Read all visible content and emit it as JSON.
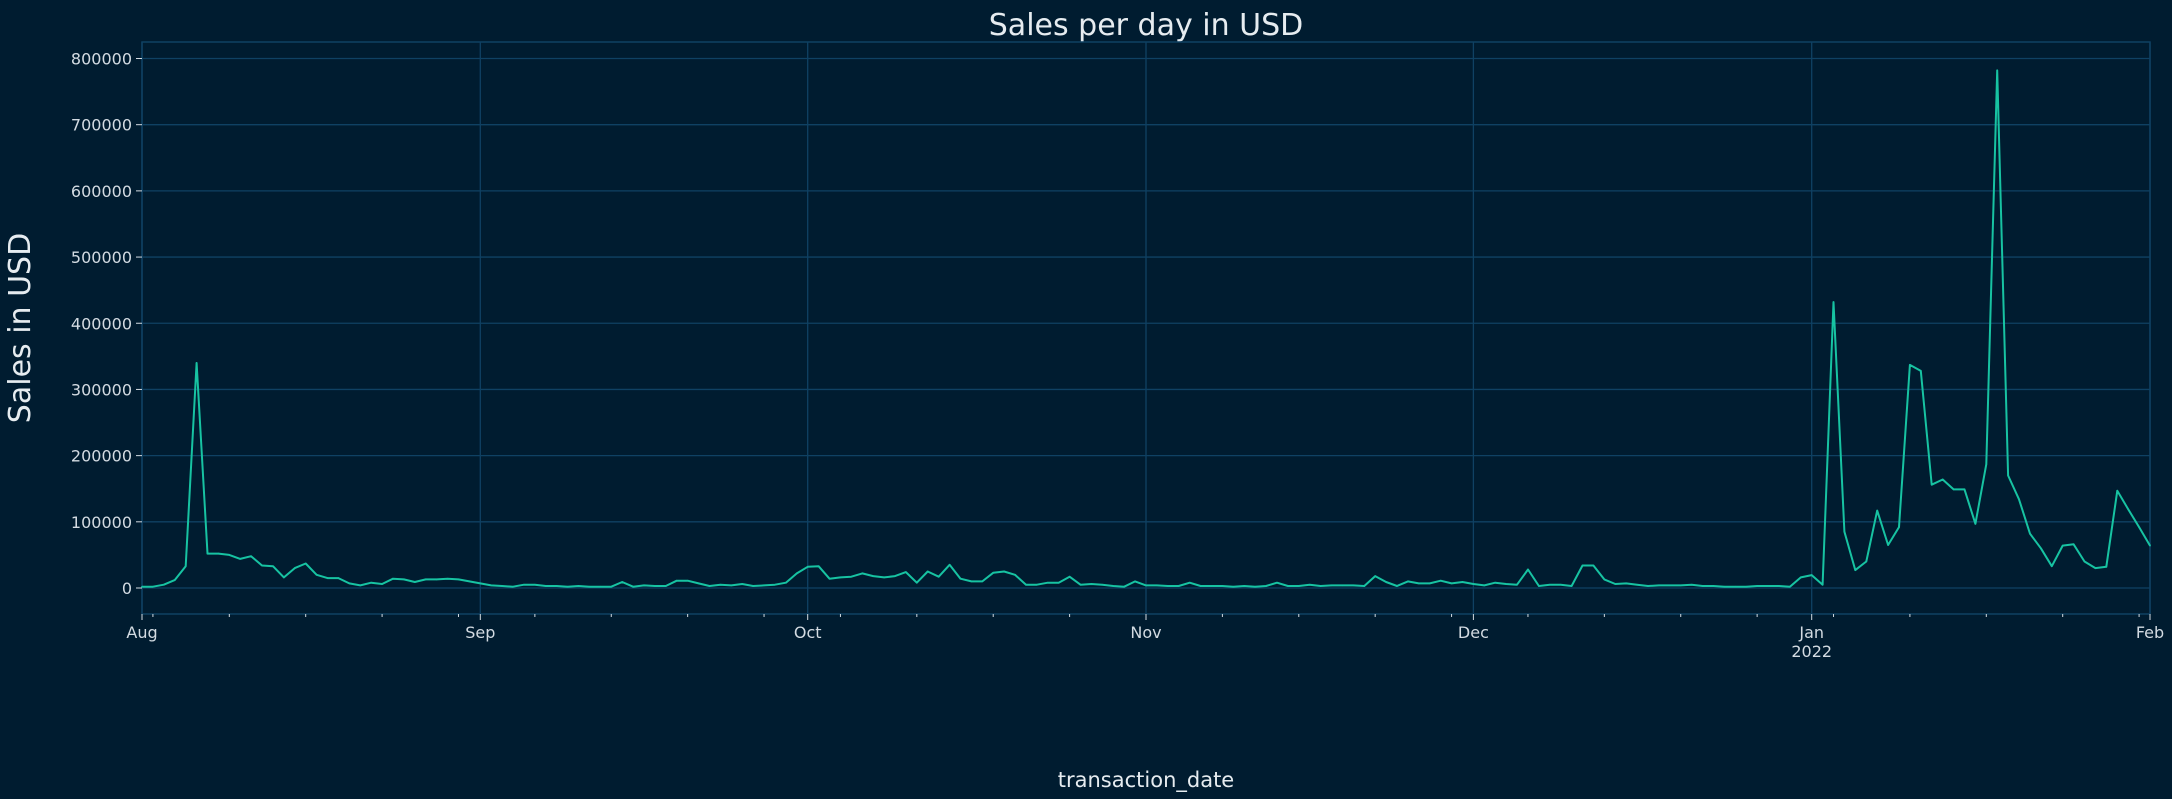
{
  "chart_data": {
    "type": "line",
    "title": "Sales per day in USD",
    "xlabel": "transaction_date",
    "ylabel": "Sales in USD",
    "x_start": "2021-08-01",
    "x_step": "1 day",
    "x_range": [
      "2021-08-01",
      "2022-02-01"
    ],
    "ylim": [
      -40000,
      825000
    ],
    "yticks": [
      0,
      100000,
      200000,
      300000,
      400000,
      500000,
      600000,
      700000,
      800000
    ],
    "ytick_labels": [
      "0",
      "100000",
      "200000",
      "300000",
      "400000",
      "500000",
      "600000",
      "700000",
      "800000"
    ],
    "xticks": [
      {
        "date": "2021-08-01",
        "label": "Aug",
        "sublabel": ""
      },
      {
        "date": "2021-09-01",
        "label": "Sep",
        "sublabel": ""
      },
      {
        "date": "2021-10-01",
        "label": "Oct",
        "sublabel": ""
      },
      {
        "date": "2021-11-01",
        "label": "Nov",
        "sublabel": ""
      },
      {
        "date": "2021-12-01",
        "label": "Dec",
        "sublabel": ""
      },
      {
        "date": "2022-01-01",
        "label": "Jan",
        "sublabel": "2022"
      },
      {
        "date": "2022-02-01",
        "label": "Feb",
        "sublabel": ""
      }
    ],
    "grid": true,
    "series": [
      {
        "name": "Sales",
        "color": "#17c3a2",
        "values": [
          2000,
          2000,
          5000,
          12000,
          33000,
          340000,
          52000,
          52000,
          50000,
          44000,
          48000,
          34000,
          33000,
          16000,
          30000,
          37000,
          20000,
          15000,
          15000,
          7000,
          4000,
          8000,
          6000,
          14000,
          13000,
          9000,
          13000,
          13000,
          14000,
          13000,
          10000,
          7000,
          4000,
          3000,
          2000,
          5000,
          5000,
          3000,
          3000,
          2000,
          3000,
          2000,
          2000,
          2000,
          9000,
          2000,
          4000,
          3000,
          3000,
          11000,
          11000,
          7000,
          3000,
          5000,
          4000,
          6000,
          3000,
          4000,
          5000,
          8000,
          22000,
          32000,
          33000,
          14000,
          16000,
          17000,
          22000,
          18000,
          16000,
          18000,
          24000,
          8000,
          25000,
          17000,
          35000,
          14000,
          10000,
          10000,
          23000,
          25000,
          20000,
          5000,
          5000,
          8000,
          8000,
          17000,
          5000,
          6000,
          5000,
          3000,
          2000,
          10000,
          4000,
          4000,
          3000,
          3000,
          8000,
          3000,
          3000,
          3000,
          2000,
          3000,
          2000,
          3000,
          8000,
          3000,
          3000,
          5000,
          3000,
          4000,
          4000,
          4000,
          3000,
          18000,
          9000,
          3000,
          10000,
          7000,
          7000,
          11000,
          7000,
          9000,
          6000,
          4000,
          8000,
          6000,
          5000,
          28000,
          3000,
          5000,
          5000,
          3000,
          34000,
          34000,
          13000,
          6000,
          7000,
          5000,
          3000,
          4000,
          4000,
          4000,
          5000,
          3000,
          3000,
          2000,
          2000,
          2000,
          3000,
          3000,
          3000,
          2000,
          16000,
          19500,
          5000,
          432000,
          85000,
          27000,
          40000,
          117000,
          65000,
          92000,
          337000,
          328000,
          156000,
          164000,
          149000,
          149000,
          97000,
          187000,
          782000,
          170000,
          134000,
          82000,
          60000,
          33000,
          64000,
          66000,
          40000,
          30000,
          32000,
          147000,
          119000,
          92000,
          64000
        ]
      }
    ]
  },
  "colors": {
    "background": "#001c30",
    "grid": "#0f4163",
    "text": "#d3dbe2",
    "line": "#17c3a2"
  }
}
